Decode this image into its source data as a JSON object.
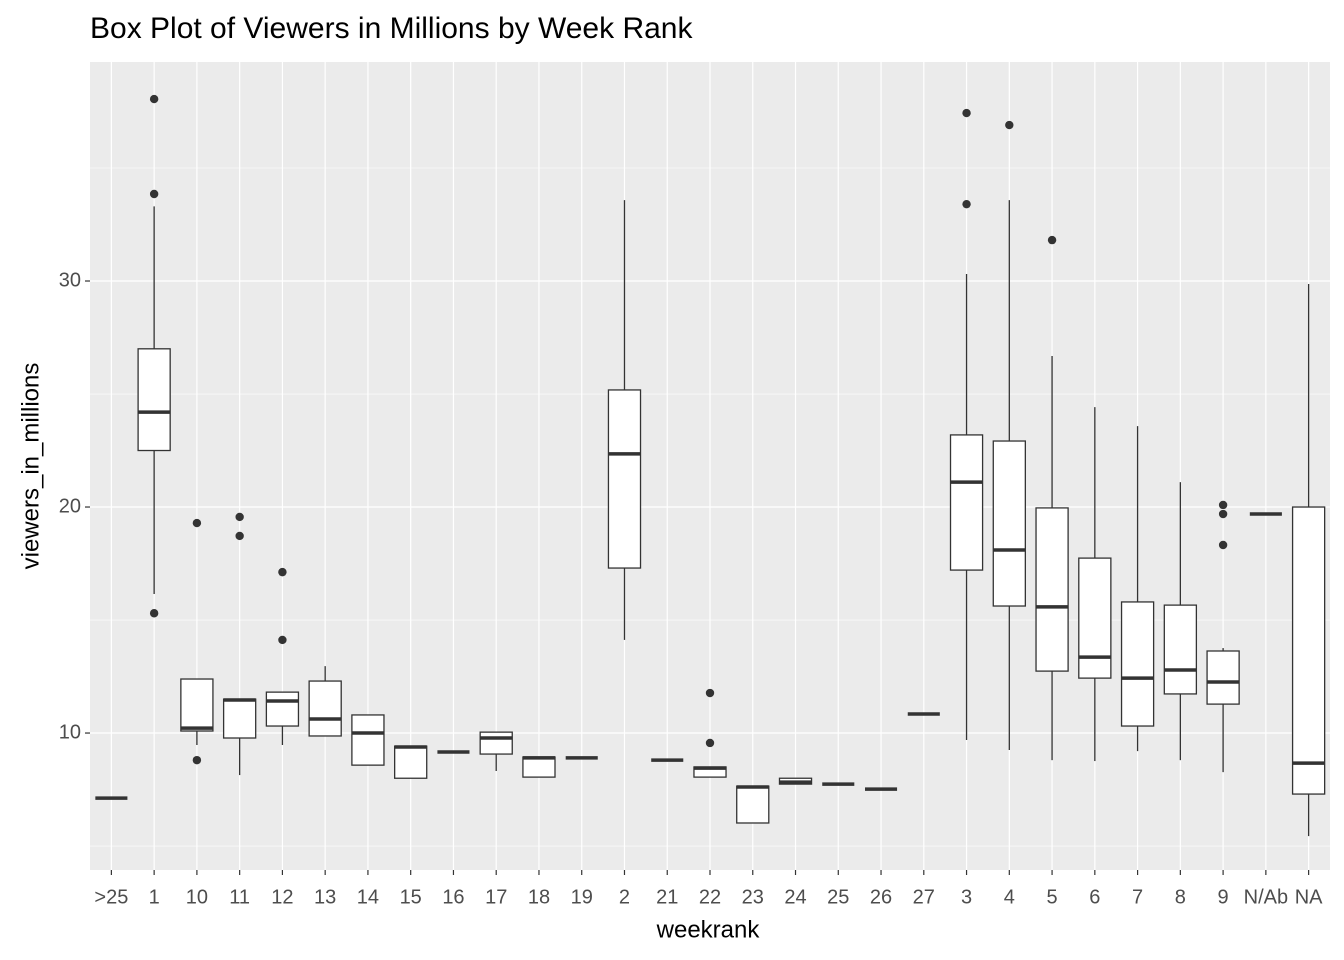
{
  "chart_data": {
    "type": "box",
    "title": "Box Plot of Viewers in Millions by Week Rank",
    "x_label": "weekrank",
    "y_label": "viewers_in_millions",
    "categories": [
      ">25",
      "1",
      "10",
      "11",
      "12",
      "13",
      "14",
      "15",
      "16",
      "17",
      "18",
      "19",
      "2",
      "21",
      "22",
      "23",
      "24",
      "25",
      "26",
      "27",
      "3",
      "4",
      "5",
      "6",
      "7",
      "8",
      "9",
      "N/Ab",
      "NA"
    ],
    "boxes": [
      {
        "min": 7.12,
        "q1": 7.12,
        "median": 7.12,
        "q3": 7.12,
        "max": 7.12,
        "outliers": []
      },
      {
        "min": 16.15,
        "q1": 22.5,
        "median": 24.2,
        "q3": 27.0,
        "max": 33.3,
        "outliers": [
          38.05,
          33.85,
          15.3
        ]
      },
      {
        "min": 9.47,
        "q1": 10.09,
        "median": 10.22,
        "q3": 12.39,
        "max": 12.39,
        "outliers": [
          8.8,
          19.29
        ]
      },
      {
        "min": 8.14,
        "q1": 9.78,
        "median": 11.46,
        "q3": 11.5,
        "max": 11.5,
        "outliers": [
          19.56,
          18.72
        ]
      },
      {
        "min": 9.47,
        "q1": 10.31,
        "median": 11.42,
        "q3": 11.81,
        "max": 11.81,
        "outliers": [
          17.12,
          14.12
        ]
      },
      {
        "min": 9.87,
        "q1": 9.87,
        "median": 10.62,
        "q3": 12.3,
        "max": 12.96,
        "outliers": []
      },
      {
        "min": 8.58,
        "q1": 8.58,
        "median": 10.0,
        "q3": 10.8,
        "max": 10.8,
        "outliers": []
      },
      {
        "min": 8.0,
        "q1": 8.0,
        "median": 9.38,
        "q3": 9.42,
        "max": 9.42,
        "outliers": []
      },
      {
        "min": 9.16,
        "q1": 9.16,
        "median": 9.16,
        "q3": 9.16,
        "max": 9.16,
        "outliers": []
      },
      {
        "min": 8.32,
        "q1": 9.07,
        "median": 9.78,
        "q3": 10.04,
        "max": 10.04,
        "outliers": []
      },
      {
        "min": 8.05,
        "q1": 8.05,
        "median": 8.9,
        "q3": 8.94,
        "max": 8.94,
        "outliers": []
      },
      {
        "min": 8.9,
        "q1": 8.9,
        "median": 8.9,
        "q3": 8.9,
        "max": 8.9,
        "outliers": []
      },
      {
        "min": 14.12,
        "q1": 17.3,
        "median": 22.35,
        "q3": 25.18,
        "max": 33.58,
        "outliers": []
      },
      {
        "min": 8.8,
        "q1": 8.8,
        "median": 8.8,
        "q3": 8.8,
        "max": 8.8,
        "outliers": []
      },
      {
        "min": 8.05,
        "q1": 8.05,
        "median": 8.45,
        "q3": 8.5,
        "max": 8.5,
        "outliers": [
          11.77,
          9.56
        ]
      },
      {
        "min": 6.02,
        "q1": 6.02,
        "median": 7.61,
        "q3": 7.65,
        "max": 7.65,
        "outliers": []
      },
      {
        "min": 7.74,
        "q1": 7.74,
        "median": 7.83,
        "q3": 8.0,
        "max": 8.0,
        "outliers": []
      },
      {
        "min": 7.74,
        "q1": 7.74,
        "median": 7.74,
        "q3": 7.74,
        "max": 7.74,
        "outliers": []
      },
      {
        "min": 7.52,
        "q1": 7.52,
        "median": 7.52,
        "q3": 7.52,
        "max": 7.52,
        "outliers": []
      },
      {
        "min": 10.84,
        "q1": 10.84,
        "median": 10.84,
        "q3": 10.84,
        "max": 10.84,
        "outliers": []
      },
      {
        "min": 9.69,
        "q1": 17.21,
        "median": 21.1,
        "q3": 23.19,
        "max": 30.31,
        "outliers": [
          37.43,
          33.4
        ]
      },
      {
        "min": 9.25,
        "q1": 15.62,
        "median": 18.1,
        "q3": 22.92,
        "max": 33.58,
        "outliers": [
          36.9
        ]
      },
      {
        "min": 8.8,
        "q1": 12.74,
        "median": 15.58,
        "q3": 19.96,
        "max": 26.68,
        "outliers": [
          31.81
        ]
      },
      {
        "min": 8.76,
        "q1": 12.43,
        "median": 13.36,
        "q3": 17.74,
        "max": 24.42,
        "outliers": []
      },
      {
        "min": 9.2,
        "q1": 10.31,
        "median": 12.43,
        "q3": 15.8,
        "max": 23.58,
        "outliers": []
      },
      {
        "min": 8.8,
        "q1": 11.73,
        "median": 12.79,
        "q3": 15.66,
        "max": 21.1,
        "outliers": []
      },
      {
        "min": 8.27,
        "q1": 11.28,
        "median": 12.26,
        "q3": 13.63,
        "max": 13.76,
        "outliers": [
          20.09,
          19.69,
          18.32
        ]
      },
      {
        "min": 19.69,
        "q1": 19.69,
        "median": 19.69,
        "q3": 19.69,
        "max": 19.69,
        "outliers": []
      },
      {
        "min": 5.44,
        "q1": 7.3,
        "median": 8.67,
        "q3": 20.0,
        "max": 29.87,
        "outliers": []
      }
    ],
    "ylim": [
      3.94,
      39.69
    ],
    "yticks": [
      10,
      20,
      30
    ],
    "minor_yticks": [
      5,
      15,
      25,
      35
    ],
    "grid": true,
    "box_fill": "#ffffff",
    "box_stroke": "#333333",
    "panel_color": "#ebebeb"
  }
}
